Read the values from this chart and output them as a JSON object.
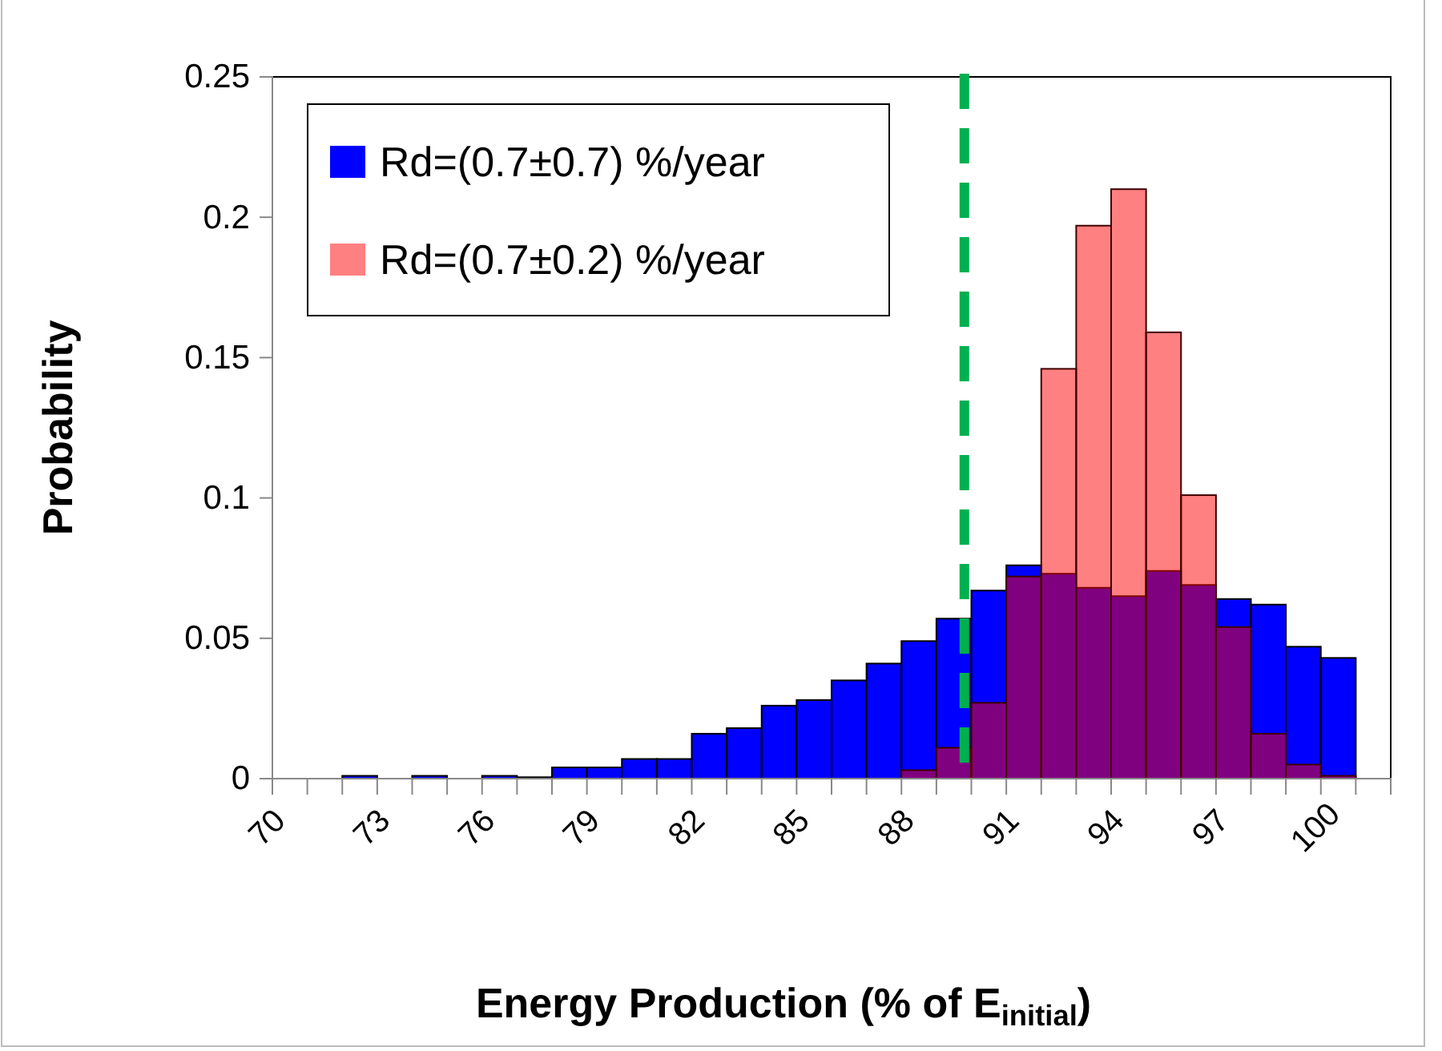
{
  "chart_data": {
    "type": "histogram",
    "xlabel": "Energy Production (% of E$_{initial}$)",
    "ylabel": "Probability",
    "bins": [
      70,
      71,
      72,
      73,
      74,
      75,
      76,
      77,
      78,
      79,
      80,
      81,
      82,
      83,
      84,
      85,
      86,
      87,
      88,
      89,
      90,
      91,
      92,
      93,
      94,
      95,
      96,
      97,
      98,
      99,
      100,
      101
    ],
    "series": [
      {
        "name": "Rd=(0.7±0.7) %/year",
        "color": "#0000ff",
        "values": [
          0,
          0,
          0.001,
          0,
          0.001,
          0,
          0.001,
          0.0005,
          0.004,
          0.004,
          0.007,
          0.007,
          0.016,
          0.018,
          0.026,
          0.028,
          0.035,
          0.041,
          0.049,
          0.057,
          0.067,
          0.076,
          0.073,
          0.068,
          0.065,
          0.074,
          0.069,
          0.064,
          0.062,
          0.047,
          0.043
        ]
      },
      {
        "name": "Rd=(0.7±0.2) %/year",
        "color": "#ff8080",
        "values": [
          0,
          0,
          0,
          0,
          0,
          0,
          0,
          0,
          0,
          0,
          0,
          0,
          0,
          0,
          0,
          0,
          0,
          0,
          0.003,
          0.011,
          0.027,
          0.072,
          0.146,
          0.197,
          0.21,
          0.159,
          0.101,
          0.054,
          0.016,
          0.005,
          0.001
        ]
      }
    ],
    "xlim": [
      70,
      102
    ],
    "xticks": [
      70,
      {
        "value": 71,
        "label": null
      },
      {
        "value": 72,
        "label": null
      },
      73,
      {
        "value": 74,
        "label": null
      },
      {
        "value": 75,
        "label": null
      },
      76,
      {
        "value": 77,
        "label": null
      },
      {
        "value": 78,
        "label": null
      },
      79,
      {
        "value": 80,
        "label": null
      },
      {
        "value": 81,
        "label": null
      },
      82,
      {
        "value": 83,
        "label": null
      },
      {
        "value": 84,
        "label": null
      },
      85,
      {
        "value": 86,
        "label": null
      },
      {
        "value": 87,
        "label": null
      },
      88,
      {
        "value": 89,
        "label": null
      },
      {
        "value": 90,
        "label": null
      },
      91,
      {
        "value": 92,
        "label": null
      },
      {
        "value": 93,
        "label": null
      },
      94,
      {
        "value": 95,
        "label": null
      },
      {
        "value": 96,
        "label": null
      },
      97,
      {
        "value": 98,
        "label": null
      },
      {
        "value": 99,
        "label": null
      },
      100,
      {
        "value": 101,
        "label": null
      },
      {
        "value": 102,
        "label": null
      }
    ],
    "ylim": [
      0,
      0.25
    ],
    "yticks": [
      0,
      0.05,
      0.1,
      0.15,
      0.2,
      0.25
    ],
    "ref_lines": [
      {
        "axis": "x",
        "value": 89.8,
        "color": "#00b050",
        "line_style": "dashed"
      }
    ],
    "legend": "top left",
    "grid": false
  }
}
